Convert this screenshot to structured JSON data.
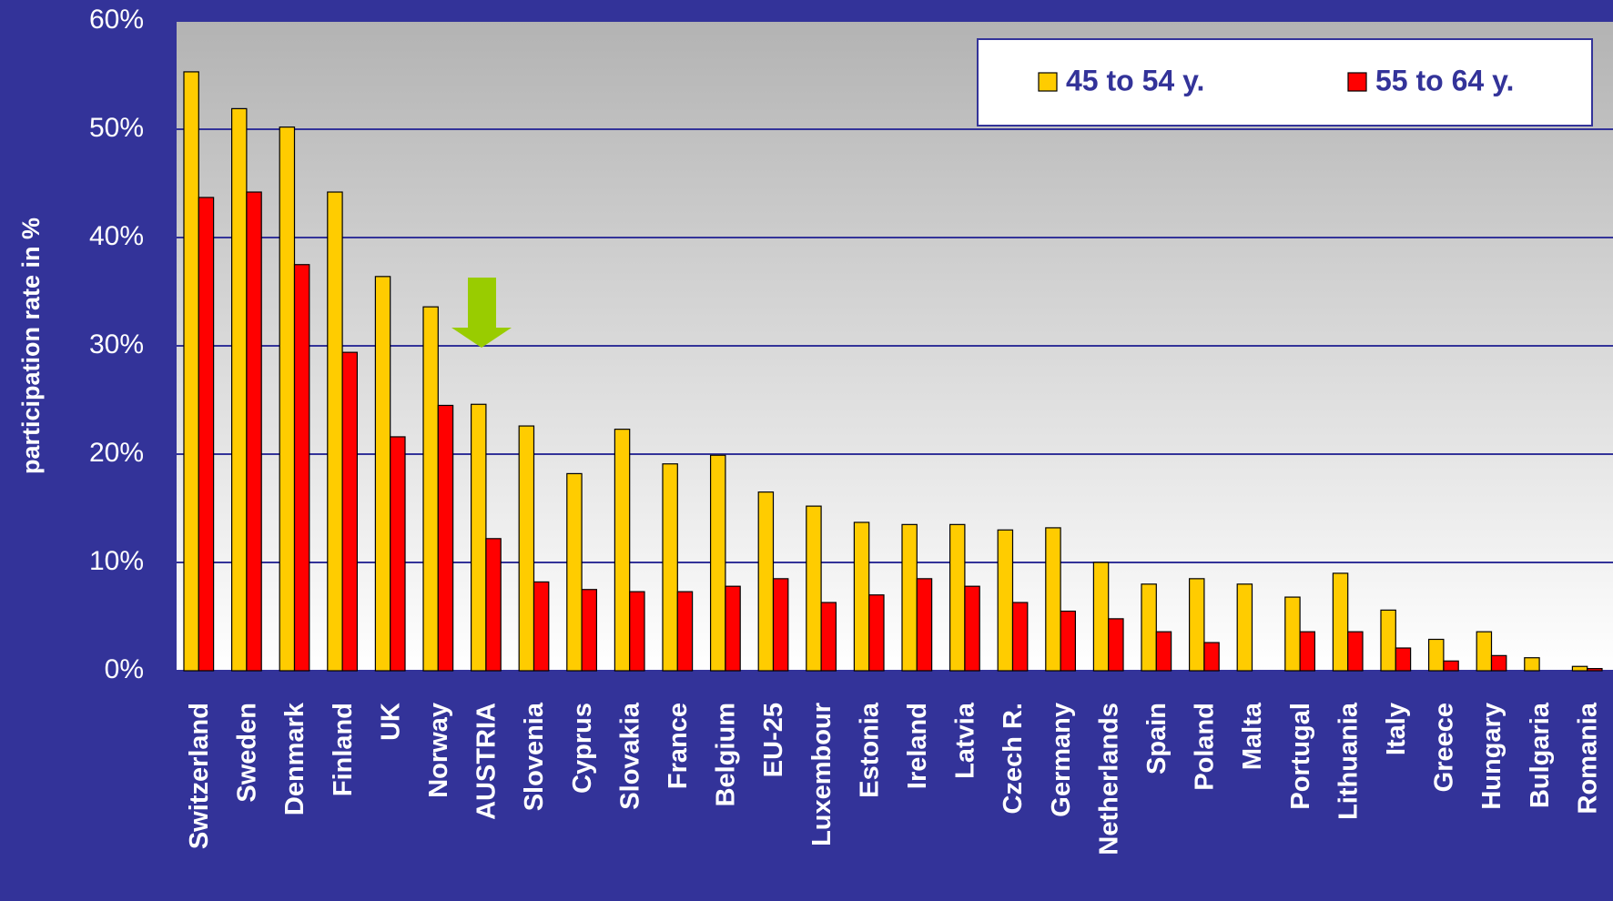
{
  "chart_data": {
    "type": "bar",
    "y_label": "participation rate in %",
    "categories": [
      "Switzerland",
      "Sweden",
      "Denmark",
      "Finland",
      "UK",
      "Norway",
      "AUSTRIA",
      "Slovenia",
      "Cyprus",
      "Slovakia",
      "France",
      "Belgium",
      "EU-25",
      "Luxembour",
      "Estonia",
      "Ireland",
      "Latvia",
      "Czech R.",
      "Germany",
      "Netherlands",
      "Spain",
      "Poland",
      "Malta",
      "Portugal",
      "Lithuania",
      "Italy",
      "Greece",
      "Hungary",
      "Bulgaria",
      "Romania"
    ],
    "series": [
      {
        "name": "45 to 54 y.",
        "color": "#ffcc00",
        "values": [
          55.3,
          51.9,
          50.2,
          44.2,
          36.4,
          33.6,
          24.6,
          22.6,
          18.2,
          22.3,
          19.1,
          19.9,
          16.5,
          15.2,
          13.7,
          13.5,
          13.5,
          13.0,
          13.2,
          10.0,
          8.0,
          8.5,
          8.0,
          6.8,
          9.0,
          5.6,
          2.9,
          3.6,
          1.2,
          0.4
        ]
      },
      {
        "name": "55 to 64 y.",
        "color": "#ff0000",
        "values": [
          43.7,
          44.2,
          37.5,
          29.4,
          21.6,
          24.5,
          12.2,
          8.2,
          7.5,
          7.3,
          7.3,
          7.8,
          8.5,
          6.3,
          7.0,
          8.5,
          7.8,
          6.3,
          5.5,
          4.8,
          3.6,
          2.6,
          null,
          3.6,
          3.6,
          2.1,
          0.9,
          1.4,
          null,
          0.2
        ]
      }
    ],
    "ylim": [
      0,
      60
    ],
    "yticks": [
      {
        "value": 0,
        "label": "0%"
      },
      {
        "value": 10,
        "label": "10%"
      },
      {
        "value": 20,
        "label": "20%"
      },
      {
        "value": 30,
        "label": "30%"
      },
      {
        "value": 40,
        "label": "40%"
      },
      {
        "value": 50,
        "label": "50%"
      },
      {
        "value": 60,
        "label": "60%"
      }
    ],
    "grid": true,
    "legend": "top-right"
  }
}
